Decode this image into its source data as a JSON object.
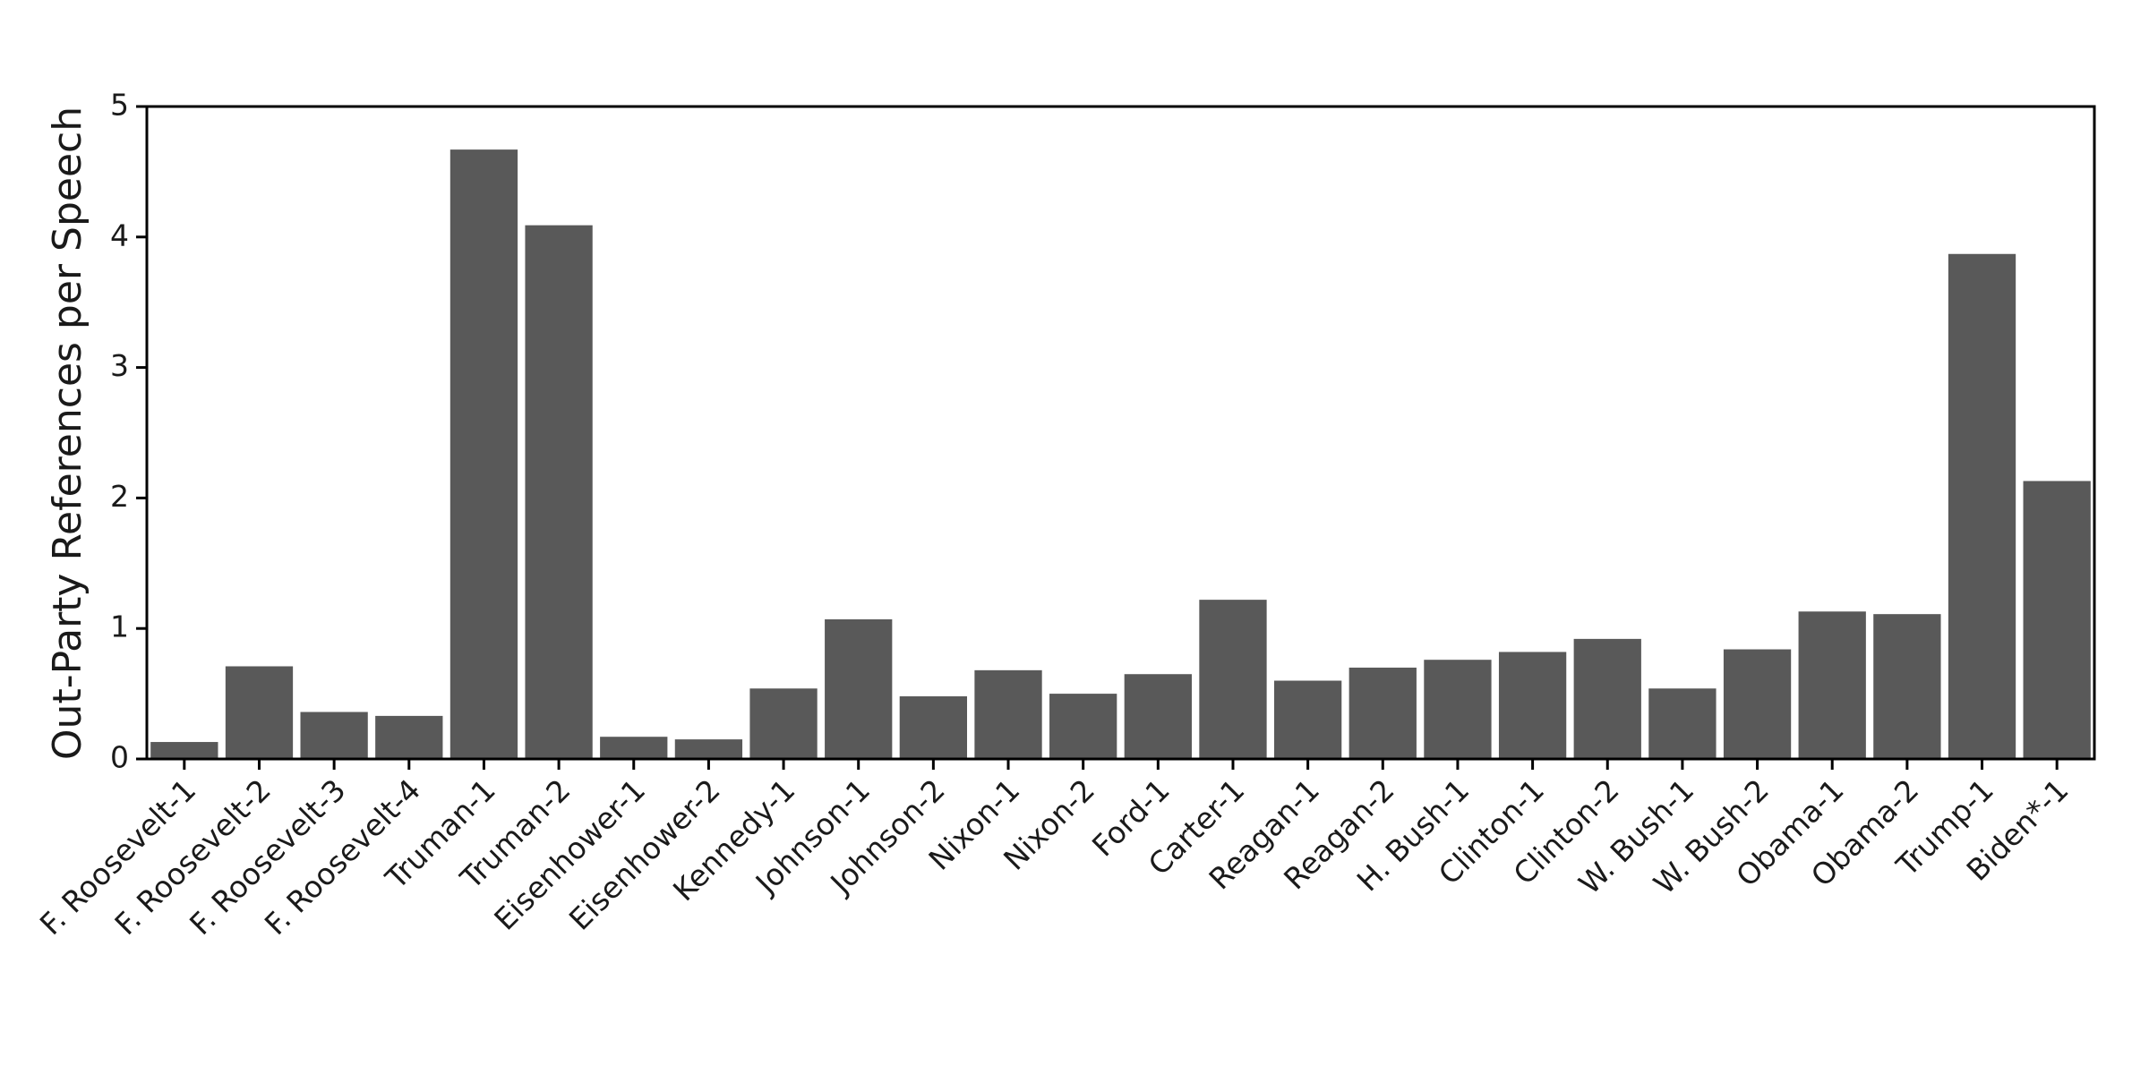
{
  "chart_data": {
    "type": "bar",
    "ylabel": "Out-Party References per Speech",
    "categories": [
      "F. Roosevelt-1",
      "F. Roosevelt-2",
      "F. Roosevelt-3",
      "F. Roosevelt-4",
      "Truman-1",
      "Truman-2",
      "Eisenhower-1",
      "Eisenhower-2",
      "Kennedy-1",
      "Johnson-1",
      "Johnson-2",
      "Nixon-1",
      "Nixon-2",
      "Ford-1",
      "Carter-1",
      "Reagan-1",
      "Reagan-2",
      "H. Bush-1",
      "Clinton-1",
      "Clinton-2",
      "W. Bush-1",
      "W. Bush-2",
      "Obama-1",
      "Obama-2",
      "Trump-1",
      "Biden*-1"
    ],
    "values": [
      0.13,
      0.71,
      0.36,
      0.33,
      4.67,
      4.09,
      0.17,
      0.15,
      0.54,
      1.07,
      0.48,
      0.68,
      0.5,
      0.65,
      1.22,
      0.6,
      0.7,
      0.76,
      0.82,
      0.92,
      0.54,
      0.84,
      1.13,
      1.11,
      3.87,
      2.13
    ],
    "color": "#595959",
    "ylim": [
      0,
      5
    ],
    "yticks": [
      0,
      1,
      2,
      3,
      4,
      5
    ],
    "grid": false
  }
}
